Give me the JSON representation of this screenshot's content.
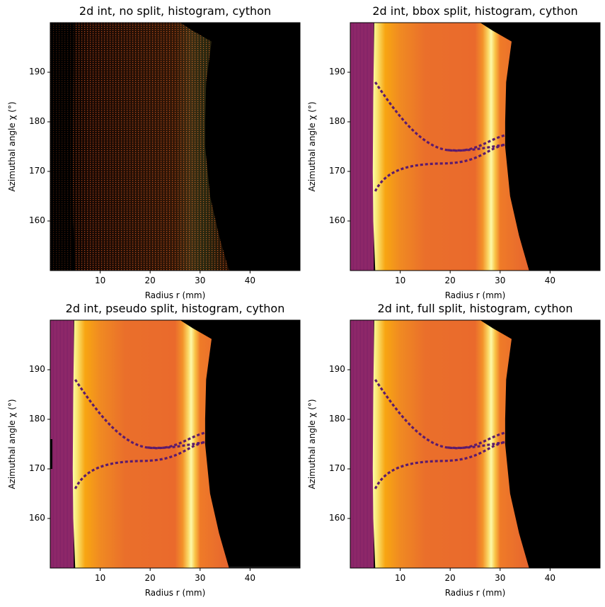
{
  "chart_data": [
    {
      "type": "heatmap",
      "title": "2d int, no split, histogram, cython",
      "xlabel": "Radius r (mm)",
      "ylabel": "Azimuthal angle χ (°)",
      "xlim": [
        0,
        50
      ],
      "ylim": [
        150,
        200
      ],
      "xticks": [
        10,
        20,
        30,
        40
      ],
      "yticks": [
        160,
        170,
        180,
        190
      ],
      "colormap": "inferno",
      "style": "sparse"
    },
    {
      "type": "heatmap",
      "title": "2d int, bbox split, histogram, cython",
      "xlabel": "Radius r (mm)",
      "ylabel": "Azimuthal angle χ (°)",
      "xlim": [
        0,
        50
      ],
      "ylim": [
        150,
        200
      ],
      "xticks": [
        10,
        20,
        30,
        40
      ],
      "yticks": [
        160,
        170,
        180,
        190
      ],
      "colormap": "inferno",
      "style": "smooth"
    },
    {
      "type": "heatmap",
      "title": "2d int, pseudo split, histogram, cython",
      "xlabel": "Radius r (mm)",
      "ylabel": "Azimuthal angle χ (°)",
      "xlim": [
        0,
        50
      ],
      "ylim": [
        150,
        200
      ],
      "xticks": [
        10,
        20,
        30,
        40
      ],
      "yticks": [
        160,
        170,
        180,
        190
      ],
      "colormap": "inferno",
      "style": "smooth"
    },
    {
      "type": "heatmap",
      "title": "2d int, full split, histogram, cython",
      "xlabel": "Radius r (mm)",
      "ylabel": "Azimuthal angle χ (°)",
      "xlim": [
        0,
        50
      ],
      "ylim": [
        150,
        200
      ],
      "xticks": [
        10,
        20,
        30,
        40
      ],
      "yticks": [
        160,
        170,
        180,
        190
      ],
      "colormap": "inferno",
      "style": "smooth"
    }
  ]
}
